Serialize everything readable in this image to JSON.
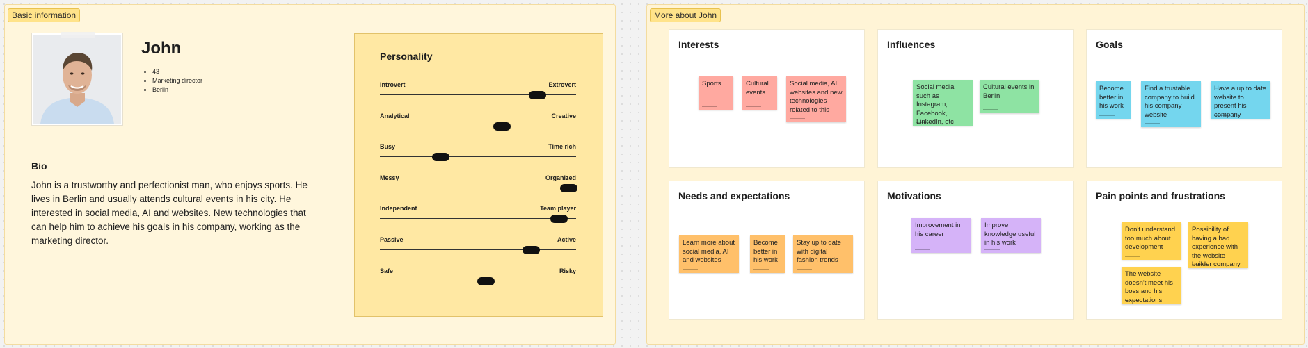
{
  "basic_section": {
    "tag": "Basic information",
    "name": "John",
    "facts": [
      "43",
      "Marketing director",
      "Berlin"
    ],
    "bio_title": "Bio",
    "bio_text": "John is a trustworthy and perfectionist man, who enjoys sports. He lives in Berlin and usually attends cultural events in his city. He interested in social media, AI and websites. New technologies that can help him to achieve his goals in his company, working as the marketing director.",
    "personality": {
      "title": "Personality",
      "traits": [
        {
          "left": "Introvert",
          "right": "Extrovert",
          "value": 0.8
        },
        {
          "left": "Analytical",
          "right": "Creative",
          "value": 0.62
        },
        {
          "left": "Busy",
          "right": "Time rich",
          "value": 0.31
        },
        {
          "left": "Messy",
          "right": "Organized",
          "value": 0.96
        },
        {
          "left": "Independent",
          "right": "Team player",
          "value": 0.91
        },
        {
          "left": "Passive",
          "right": "Active",
          "value": 0.77
        },
        {
          "left": "Safe",
          "right": "Risky",
          "value": 0.54
        }
      ]
    }
  },
  "more_section": {
    "tag": "More about John",
    "cards": [
      {
        "title": "Interests",
        "notes": [
          "Sports",
          "Cultural events",
          "Social media, AI, websites and new technologies related to this"
        ]
      },
      {
        "title": "Influences",
        "notes": [
          "Social media such as Instagram, Facebook, LinkedIn, etc",
          "Cultural events in Berlin"
        ]
      },
      {
        "title": "Goals",
        "notes": [
          "Become better in his work",
          "Find a trustable company to build his company website",
          "Have a up to date website to present his company"
        ]
      },
      {
        "title": "Needs and expectations",
        "notes": [
          "Learn more about social media, AI and websites",
          "Become better in his work",
          "Stay up to date with digital fashion trends"
        ]
      },
      {
        "title": "Motivations",
        "notes": [
          "Improvement in his career",
          "Improve knowledge useful in his work"
        ]
      },
      {
        "title": "Pain points and frustrations",
        "notes": [
          "Don't understand too much about development",
          "Possibility of having a bad experience with the website builder company",
          "The website doesn't meet his boss and his expectations"
        ]
      }
    ]
  },
  "colors": {
    "interests": "#ffa9a0",
    "influences": "#8ee3a3",
    "goals": "#74d6ee",
    "needs": "#ffc06a",
    "motivations": "#d5b3f8",
    "pain_points": "#ffd24f"
  }
}
